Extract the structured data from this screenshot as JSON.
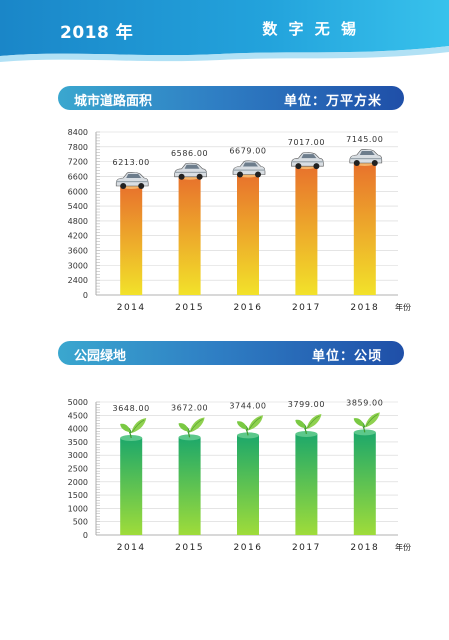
{
  "header": {
    "year": "2018 年",
    "city": "数 字 无 锡"
  },
  "colors": {
    "accent": "#1f8ccf",
    "banner_end": "#1f4fa8",
    "orange_top": "#e8722c",
    "yellow_bottom": "#f2e22a",
    "green_top": "#1da86a",
    "green_bottom": "#9fdc3a"
  },
  "sections": [
    {
      "title": "城市道路面积",
      "unit": "单位：万平方米"
    },
    {
      "title": "公园绿地",
      "unit": "单位：公顷"
    }
  ],
  "chart_data": [
    {
      "type": "bar",
      "categories": [
        "2014",
        "2015",
        "2016",
        "2017",
        "2018"
      ],
      "values": [
        6213.0,
        6586.0,
        6679.0,
        7017.0,
        7145.0
      ],
      "value_labels": [
        "6213.00",
        "6586.00",
        "6679.00",
        "7017.00",
        "7145.00"
      ],
      "xlabel": "年份",
      "ylabel": "",
      "ylim": [
        0,
        8400
      ],
      "yticks": [
        0,
        2400,
        3000,
        3600,
        4200,
        4800,
        5400,
        6000,
        6600,
        7200,
        7800,
        8400
      ],
      "ytick_labels": [
        "0",
        "2400",
        "3000",
        "3600",
        "4200",
        "4800",
        "5400",
        "6000",
        "6600",
        "7200",
        "7800",
        "8400"
      ],
      "bar_icon": "car-icon",
      "grid": true
    },
    {
      "type": "bar",
      "categories": [
        "2014",
        "2015",
        "2016",
        "2017",
        "2018"
      ],
      "values": [
        3648.0,
        3672.0,
        3744.0,
        3799.0,
        3859.0
      ],
      "value_labels": [
        "3648.00",
        "3672.00",
        "3744.00",
        "3799.00",
        "3859.00"
      ],
      "xlabel": "年份",
      "ylabel": "",
      "ylim": [
        0,
        5000
      ],
      "yticks": [
        0,
        500,
        1000,
        1500,
        2000,
        2500,
        3000,
        3500,
        4000,
        4500,
        5000
      ],
      "ytick_labels": [
        "0",
        "500",
        "1000",
        "1500",
        "2000",
        "2500",
        "3000",
        "3500",
        "4000",
        "4500",
        "5000"
      ],
      "bar_icon": "leaf-icon",
      "grid": true
    }
  ]
}
